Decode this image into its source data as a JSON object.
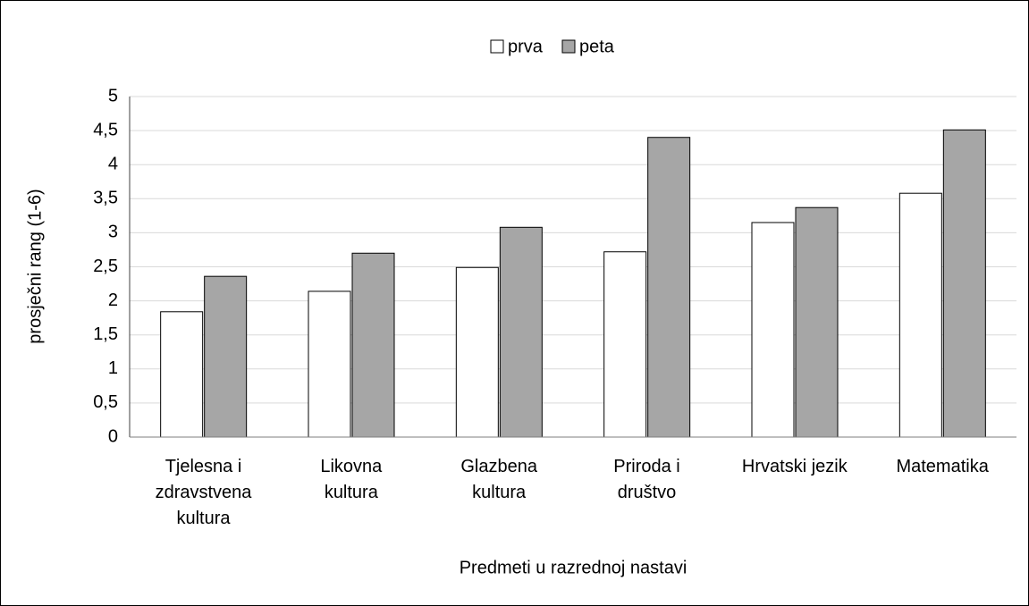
{
  "chart_data": {
    "type": "bar",
    "legend": "top",
    "ylabel": "prosječni rang (1-6)",
    "xlabel": "Predmeti u razrednoj nastavi",
    "categories": [
      "Tjelesna i\nzdravstvena\nkultura",
      "Likovna\nkultura",
      "Glazbena\nkultura",
      "Priroda i\ndruštvo",
      "Hrvatski jezik",
      "Matematika"
    ],
    "series": [
      {
        "name": "prva",
        "color": "#ffffff",
        "values": [
          1.84,
          2.14,
          2.49,
          2.72,
          3.15,
          3.58
        ]
      },
      {
        "name": "peta",
        "color": "#a6a6a6",
        "values": [
          2.36,
          2.7,
          3.08,
          4.4,
          3.37,
          4.51
        ]
      }
    ],
    "ylim": [
      0,
      5
    ],
    "yticks": [
      0,
      {
        "value": 0.5,
        "label": "0,5"
      },
      1,
      {
        "value": 1.5,
        "label": "1,5"
      },
      2,
      {
        "value": 2.5,
        "label": "2,5"
      },
      3,
      {
        "value": 3.5,
        "label": "3,5"
      },
      4,
      {
        "value": 4.5,
        "label": "4,5"
      },
      5
    ],
    "grid": true
  }
}
